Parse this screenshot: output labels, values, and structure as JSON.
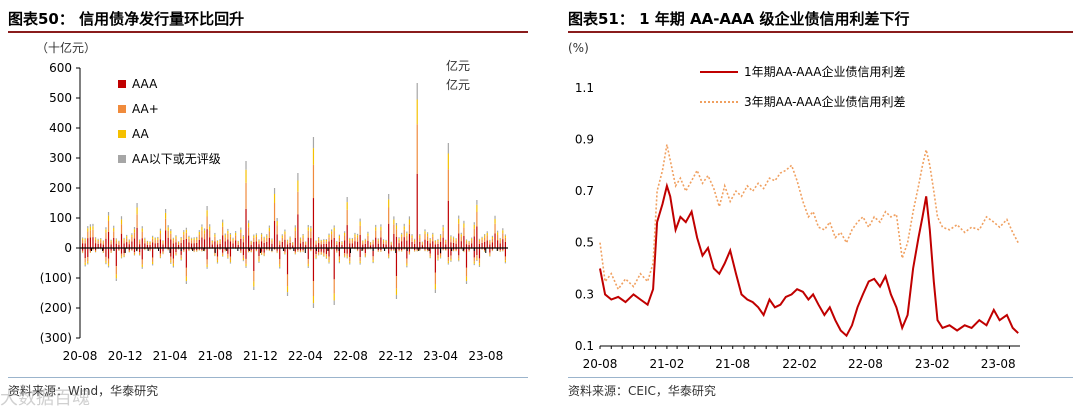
{
  "watermark": "大数据百魂",
  "left": {
    "title": "图表50：  信用债净发行量环比回升",
    "unit": "（十亿元）",
    "source": "资料来源：Wind，华泰研究",
    "annotations": [
      "亿元",
      "亿元"
    ]
  },
  "right": {
    "title": "图表51：  1 年期 AA-AAA 级企业债信用利差下行",
    "unit": "(%)",
    "source": "资料来源：CEIC，华泰研究"
  },
  "colors": {
    "title_rule": "#8a1c1c",
    "AAA": "#c00000",
    "AA_plus": "#f08b3c",
    "AA": "#f5c000",
    "AA_below": "#a6a6a6",
    "spread_1y": "#c00000",
    "spread_3y": "#f0a060"
  },
  "chart_data": [
    {
      "type": "bar",
      "stacked": true,
      "unit": "（十亿元）",
      "ylim": [
        -300,
        600
      ],
      "yticks": [
        600,
        500,
        400,
        300,
        200,
        100,
        0,
        -100,
        -200,
        -300
      ],
      "ytick_labels": [
        "600",
        "500",
        "400",
        "300",
        "200",
        "100",
        "0",
        "(100)",
        "(200)",
        "(300)"
      ],
      "x_tick_labels": [
        "20-08",
        "20-12",
        "21-04",
        "21-08",
        "21-12",
        "22-04",
        "22-08",
        "22-12",
        "23-04",
        "23-08"
      ],
      "x_range": [
        "2020-08-01",
        "2023-09-30"
      ],
      "legend": [
        "AAA",
        "AA+",
        "AA",
        "AA以下或无评级"
      ],
      "legend_position": "top-left",
      "series_positive_peaks": [
        {
          "x": "2020-10-15",
          "value": 120
        },
        {
          "x": "2021-01-05",
          "value": 150
        },
        {
          "x": "2021-03-20",
          "value": 130
        },
        {
          "x": "2021-07-10",
          "value": 140
        },
        {
          "x": "2021-10-20",
          "value": 290
        },
        {
          "x": "2022-01-05",
          "value": 200
        },
        {
          "x": "2022-03-15",
          "value": 250
        },
        {
          "x": "2022-04-25",
          "value": 370
        },
        {
          "x": "2022-07-20",
          "value": 170
        },
        {
          "x": "2022-11-15",
          "value": 180
        },
        {
          "x": "2023-01-25",
          "value": 550
        },
        {
          "x": "2023-04-20",
          "value": 350
        },
        {
          "x": "2023-07-10",
          "value": 160
        }
      ],
      "series_negative_troughs": [
        {
          "x": "2020-11-10",
          "value": -110
        },
        {
          "x": "2021-05-15",
          "value": -120
        },
        {
          "x": "2021-11-15",
          "value": -140
        },
        {
          "x": "2022-02-10",
          "value": -160
        },
        {
          "x": "2022-04-20",
          "value": -200
        },
        {
          "x": "2022-06-15",
          "value": -190
        },
        {
          "x": "2022-12-05",
          "value": -170
        },
        {
          "x": "2023-03-15",
          "value": -150
        },
        {
          "x": "2023-06-10",
          "value": -120
        }
      ]
    },
    {
      "type": "line",
      "unit": "(%)",
      "ylim": [
        0.1,
        1.2
      ],
      "yticks": [
        1.1,
        0.9,
        0.7,
        0.5,
        0.3,
        0.1
      ],
      "x_tick_labels": [
        "20-08",
        "21-02",
        "21-08",
        "22-02",
        "22-08",
        "23-02",
        "23-08"
      ],
      "x_range": [
        "2020-08-01",
        "2023-09-30"
      ],
      "legend_position": "top-center",
      "series": [
        {
          "name": "1年期AA-AAA企业债信用利差",
          "style": "solid",
          "points": [
            [
              "2020-08-01",
              0.4
            ],
            [
              "2020-08-15",
              0.3
            ],
            [
              "2020-09-01",
              0.28
            ],
            [
              "2020-09-20",
              0.29
            ],
            [
              "2020-10-10",
              0.27
            ],
            [
              "2020-11-01",
              0.3
            ],
            [
              "2020-11-20",
              0.28
            ],
            [
              "2020-12-10",
              0.26
            ],
            [
              "2020-12-25",
              0.32
            ],
            [
              "2021-01-05",
              0.58
            ],
            [
              "2021-01-20",
              0.65
            ],
            [
              "2021-02-01",
              0.72
            ],
            [
              "2021-02-10",
              0.68
            ],
            [
              "2021-02-25",
              0.55
            ],
            [
              "2021-03-10",
              0.6
            ],
            [
              "2021-03-25",
              0.58
            ],
            [
              "2021-04-10",
              0.62
            ],
            [
              "2021-04-25",
              0.52
            ],
            [
              "2021-05-10",
              0.45
            ],
            [
              "2021-05-25",
              0.48
            ],
            [
              "2021-06-10",
              0.4
            ],
            [
              "2021-06-25",
              0.38
            ],
            [
              "2021-07-10",
              0.42
            ],
            [
              "2021-07-25",
              0.47
            ],
            [
              "2021-08-10",
              0.38
            ],
            [
              "2021-08-25",
              0.3
            ],
            [
              "2021-09-10",
              0.28
            ],
            [
              "2021-09-25",
              0.27
            ],
            [
              "2021-10-10",
              0.25
            ],
            [
              "2021-10-25",
              0.22
            ],
            [
              "2021-11-10",
              0.28
            ],
            [
              "2021-11-25",
              0.25
            ],
            [
              "2021-12-10",
              0.26
            ],
            [
              "2021-12-25",
              0.29
            ],
            [
              "2022-01-10",
              0.3
            ],
            [
              "2022-01-25",
              0.32
            ],
            [
              "2022-02-10",
              0.31
            ],
            [
              "2022-02-25",
              0.28
            ],
            [
              "2022-03-10",
              0.3
            ],
            [
              "2022-03-25",
              0.26
            ],
            [
              "2022-04-10",
              0.22
            ],
            [
              "2022-04-25",
              0.25
            ],
            [
              "2022-05-10",
              0.2
            ],
            [
              "2022-05-25",
              0.16
            ],
            [
              "2022-06-10",
              0.14
            ],
            [
              "2022-06-25",
              0.18
            ],
            [
              "2022-07-10",
              0.25
            ],
            [
              "2022-07-25",
              0.3
            ],
            [
              "2022-08-10",
              0.35
            ],
            [
              "2022-08-25",
              0.36
            ],
            [
              "2022-09-10",
              0.33
            ],
            [
              "2022-09-25",
              0.37
            ],
            [
              "2022-10-10",
              0.3
            ],
            [
              "2022-10-25",
              0.25
            ],
            [
              "2022-11-10",
              0.17
            ],
            [
              "2022-11-25",
              0.22
            ],
            [
              "2022-12-10",
              0.4
            ],
            [
              "2022-12-25",
              0.52
            ],
            [
              "2023-01-05",
              0.6
            ],
            [
              "2023-01-15",
              0.68
            ],
            [
              "2023-01-25",
              0.55
            ],
            [
              "2023-02-05",
              0.35
            ],
            [
              "2023-02-15",
              0.2
            ],
            [
              "2023-03-01",
              0.17
            ],
            [
              "2023-03-20",
              0.18
            ],
            [
              "2023-04-10",
              0.16
            ],
            [
              "2023-05-01",
              0.18
            ],
            [
              "2023-05-20",
              0.17
            ],
            [
              "2023-06-10",
              0.2
            ],
            [
              "2023-06-30",
              0.18
            ],
            [
              "2023-07-20",
              0.24
            ],
            [
              "2023-08-05",
              0.2
            ],
            [
              "2023-08-25",
              0.22
            ],
            [
              "2023-09-10",
              0.17
            ],
            [
              "2023-09-25",
              0.15
            ]
          ]
        },
        {
          "name": "3年期AA-AAA企业债信用利差",
          "style": "dotted",
          "points": [
            [
              "2020-08-01",
              0.5
            ],
            [
              "2020-08-15",
              0.35
            ],
            [
              "2020-09-01",
              0.38
            ],
            [
              "2020-09-20",
              0.32
            ],
            [
              "2020-10-10",
              0.36
            ],
            [
              "2020-11-01",
              0.33
            ],
            [
              "2020-11-20",
              0.38
            ],
            [
              "2020-12-10",
              0.35
            ],
            [
              "2020-12-25",
              0.42
            ],
            [
              "2021-01-05",
              0.7
            ],
            [
              "2021-01-20",
              0.78
            ],
            [
              "2021-02-01",
              0.88
            ],
            [
              "2021-02-10",
              0.82
            ],
            [
              "2021-02-25",
              0.72
            ],
            [
              "2021-03-10",
              0.75
            ],
            [
              "2021-03-25",
              0.7
            ],
            [
              "2021-04-10",
              0.74
            ],
            [
              "2021-04-25",
              0.78
            ],
            [
              "2021-05-10",
              0.73
            ],
            [
              "2021-05-25",
              0.76
            ],
            [
              "2021-06-10",
              0.71
            ],
            [
              "2021-06-25",
              0.64
            ],
            [
              "2021-07-10",
              0.72
            ],
            [
              "2021-07-25",
              0.66
            ],
            [
              "2021-08-10",
              0.7
            ],
            [
              "2021-08-25",
              0.68
            ],
            [
              "2021-09-10",
              0.72
            ],
            [
              "2021-09-25",
              0.7
            ],
            [
              "2021-10-10",
              0.73
            ],
            [
              "2021-10-25",
              0.71
            ],
            [
              "2021-11-10",
              0.75
            ],
            [
              "2021-11-25",
              0.74
            ],
            [
              "2021-12-10",
              0.77
            ],
            [
              "2021-12-25",
              0.78
            ],
            [
              "2022-01-10",
              0.8
            ],
            [
              "2022-01-25",
              0.74
            ],
            [
              "2022-02-10",
              0.66
            ],
            [
              "2022-02-25",
              0.6
            ],
            [
              "2022-03-10",
              0.62
            ],
            [
              "2022-03-25",
              0.56
            ],
            [
              "2022-04-10",
              0.55
            ],
            [
              "2022-04-25",
              0.58
            ],
            [
              "2022-05-10",
              0.52
            ],
            [
              "2022-05-25",
              0.54
            ],
            [
              "2022-06-10",
              0.5
            ],
            [
              "2022-06-25",
              0.55
            ],
            [
              "2022-07-10",
              0.58
            ],
            [
              "2022-07-25",
              0.6
            ],
            [
              "2022-08-10",
              0.56
            ],
            [
              "2022-08-25",
              0.6
            ],
            [
              "2022-09-10",
              0.58
            ],
            [
              "2022-09-25",
              0.62
            ],
            [
              "2022-10-10",
              0.6
            ],
            [
              "2022-10-25",
              0.61
            ],
            [
              "2022-11-10",
              0.44
            ],
            [
              "2022-11-25",
              0.5
            ],
            [
              "2022-12-10",
              0.62
            ],
            [
              "2022-12-25",
              0.72
            ],
            [
              "2023-01-05",
              0.8
            ],
            [
              "2023-01-15",
              0.86
            ],
            [
              "2023-01-25",
              0.8
            ],
            [
              "2023-02-05",
              0.7
            ],
            [
              "2023-02-15",
              0.6
            ],
            [
              "2023-03-01",
              0.56
            ],
            [
              "2023-03-20",
              0.55
            ],
            [
              "2023-04-10",
              0.57
            ],
            [
              "2023-05-01",
              0.54
            ],
            [
              "2023-05-20",
              0.56
            ],
            [
              "2023-06-10",
              0.55
            ],
            [
              "2023-06-30",
              0.6
            ],
            [
              "2023-07-20",
              0.58
            ],
            [
              "2023-08-05",
              0.56
            ],
            [
              "2023-08-25",
              0.59
            ],
            [
              "2023-09-10",
              0.54
            ],
            [
              "2023-09-25",
              0.5
            ]
          ]
        }
      ]
    }
  ]
}
